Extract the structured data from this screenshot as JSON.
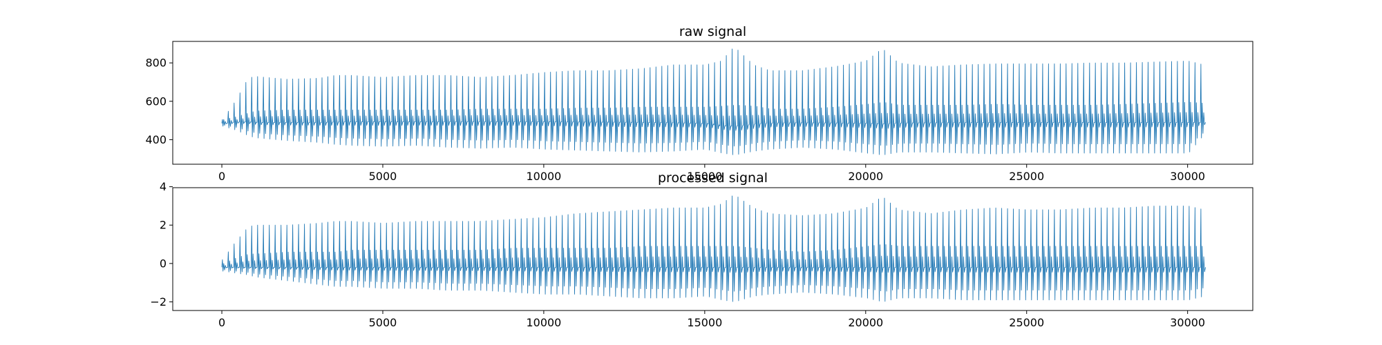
{
  "chart_data": [
    {
      "type": "line",
      "title": "raw signal",
      "xlabel": "",
      "ylabel": "",
      "xlim": [
        -1525,
        32025
      ],
      "ylim": [
        272,
        912
      ],
      "xticks": [
        0,
        5000,
        10000,
        15000,
        20000,
        25000,
        30000
      ],
      "xtick_labels": [
        "0",
        "5000",
        "10000",
        "15000",
        "20000",
        "25000",
        "30000"
      ],
      "yticks": [
        400,
        600,
        800
      ],
      "ytick_labels": [
        "400",
        "600",
        "800"
      ],
      "grid": false,
      "legend": "none",
      "color": "#1f77b4",
      "series": [
        {
          "x": [
            0,
            400,
            800,
            1000,
            2000,
            3000,
            3500,
            4000,
            5000,
            6000,
            7000,
            8000,
            9000,
            10000,
            11000,
            12000,
            13000,
            14000,
            15000,
            15500,
            15900,
            16500,
            17000,
            18000,
            19000,
            20000,
            20500,
            21000,
            22000,
            23000,
            24000,
            25000,
            26000,
            27000,
            28000,
            29000,
            30000,
            30500
          ],
          "peak": [
            505,
            600,
            720,
            730,
            715,
            720,
            735,
            735,
            725,
            735,
            735,
            725,
            735,
            750,
            760,
            760,
            770,
            790,
            790,
            810,
            885,
            790,
            760,
            760,
            780,
            810,
            875,
            800,
            780,
            790,
            795,
            795,
            795,
            800,
            800,
            805,
            810,
            790
          ],
          "upper": [
            505,
            520,
            540,
            550,
            555,
            555,
            555,
            555,
            555,
            555,
            555,
            560,
            560,
            560,
            565,
            565,
            570,
            570,
            570,
            575,
            580,
            575,
            560,
            560,
            570,
            585,
            595,
            580,
            580,
            580,
            585,
            580,
            580,
            580,
            585,
            590,
            595,
            590
          ],
          "baseline": [
            485,
            492,
            492,
            490,
            490,
            490,
            492,
            493,
            493,
            493,
            494,
            494,
            494,
            493,
            492,
            491,
            490,
            488,
            484,
            472,
            470,
            482,
            487,
            488,
            487,
            485,
            482,
            487,
            488,
            489,
            489,
            490,
            490,
            489,
            489,
            490,
            490,
            490
          ],
          "trough": [
            470,
            450,
            420,
            410,
            395,
            385,
            375,
            370,
            365,
            370,
            360,
            355,
            360,
            350,
            345,
            340,
            335,
            340,
            350,
            330,
            320,
            340,
            350,
            360,
            350,
            330,
            320,
            335,
            335,
            330,
            325,
            335,
            330,
            330,
            330,
            330,
            330,
            430
          ]
        }
      ]
    },
    {
      "type": "line",
      "title": "processed signal",
      "xlabel": "",
      "ylabel": "",
      "xlim": [
        -1525,
        32025
      ],
      "ylim": [
        -2.45,
        3.95
      ],
      "xticks": [
        0,
        5000,
        10000,
        15000,
        20000,
        25000,
        30000
      ],
      "xtick_labels": [
        "0",
        "5000",
        "10000",
        "15000",
        "20000",
        "25000",
        "30000"
      ],
      "yticks": [
        -2,
        0,
        2,
        4
      ],
      "ytick_labels": [
        "−2",
        "0",
        "2",
        "4"
      ],
      "grid": false,
      "legend": "none",
      "color": "#1f77b4",
      "series": [
        {
          "x": [
            0,
            400,
            800,
            1000,
            2000,
            3000,
            3500,
            4000,
            5000,
            6000,
            7000,
            8000,
            9000,
            10000,
            11000,
            12000,
            13000,
            14000,
            15000,
            15500,
            15900,
            16500,
            17000,
            18000,
            19000,
            20000,
            20500,
            21000,
            22000,
            23000,
            24000,
            25000,
            26000,
            27000,
            28000,
            29000,
            30000,
            30500
          ],
          "peak": [
            0.2,
            1.1,
            1.9,
            2.0,
            2.0,
            2.1,
            2.2,
            2.2,
            2.1,
            2.2,
            2.2,
            2.2,
            2.3,
            2.4,
            2.6,
            2.7,
            2.8,
            2.9,
            2.9,
            3.1,
            3.6,
            2.9,
            2.6,
            2.5,
            2.6,
            2.9,
            3.5,
            2.8,
            2.6,
            2.8,
            2.9,
            2.8,
            2.8,
            2.9,
            2.9,
            3.0,
            3.0,
            2.8
          ],
          "upper": [
            0.0,
            0.3,
            0.5,
            0.5,
            0.6,
            0.6,
            0.6,
            0.7,
            0.7,
            0.7,
            0.7,
            0.7,
            0.8,
            0.8,
            0.8,
            0.8,
            0.9,
            0.9,
            0.9,
            0.9,
            0.9,
            0.8,
            0.7,
            0.6,
            0.7,
            0.9,
            1.0,
            0.9,
            0.9,
            0.9,
            0.9,
            0.9,
            0.9,
            0.9,
            0.9,
            0.9,
            0.9,
            0.9
          ],
          "baseline": [
            -0.2,
            -0.2,
            -0.2,
            -0.2,
            -0.2,
            -0.2,
            -0.2,
            -0.2,
            -0.2,
            -0.2,
            -0.2,
            -0.2,
            -0.2,
            -0.2,
            -0.2,
            -0.2,
            -0.2,
            -0.2,
            -0.2,
            -0.2,
            -0.2,
            -0.2,
            -0.2,
            -0.2,
            -0.2,
            -0.2,
            -0.2,
            -0.2,
            -0.2,
            -0.2,
            -0.2,
            -0.2,
            -0.2,
            -0.2,
            -0.2,
            -0.2,
            -0.2,
            -0.2
          ],
          "trough": [
            -0.4,
            -0.5,
            -0.6,
            -0.7,
            -0.9,
            -1.1,
            -1.2,
            -1.2,
            -1.3,
            -1.3,
            -1.4,
            -1.4,
            -1.5,
            -1.6,
            -1.6,
            -1.7,
            -1.8,
            -1.8,
            -1.7,
            -1.9,
            -2.0,
            -1.7,
            -1.6,
            -1.5,
            -1.6,
            -1.8,
            -2.0,
            -1.8,
            -1.8,
            -1.9,
            -1.9,
            -1.9,
            -1.9,
            -1.9,
            -1.9,
            -1.9,
            -1.9,
            -1.7
          ]
        }
      ]
    }
  ]
}
